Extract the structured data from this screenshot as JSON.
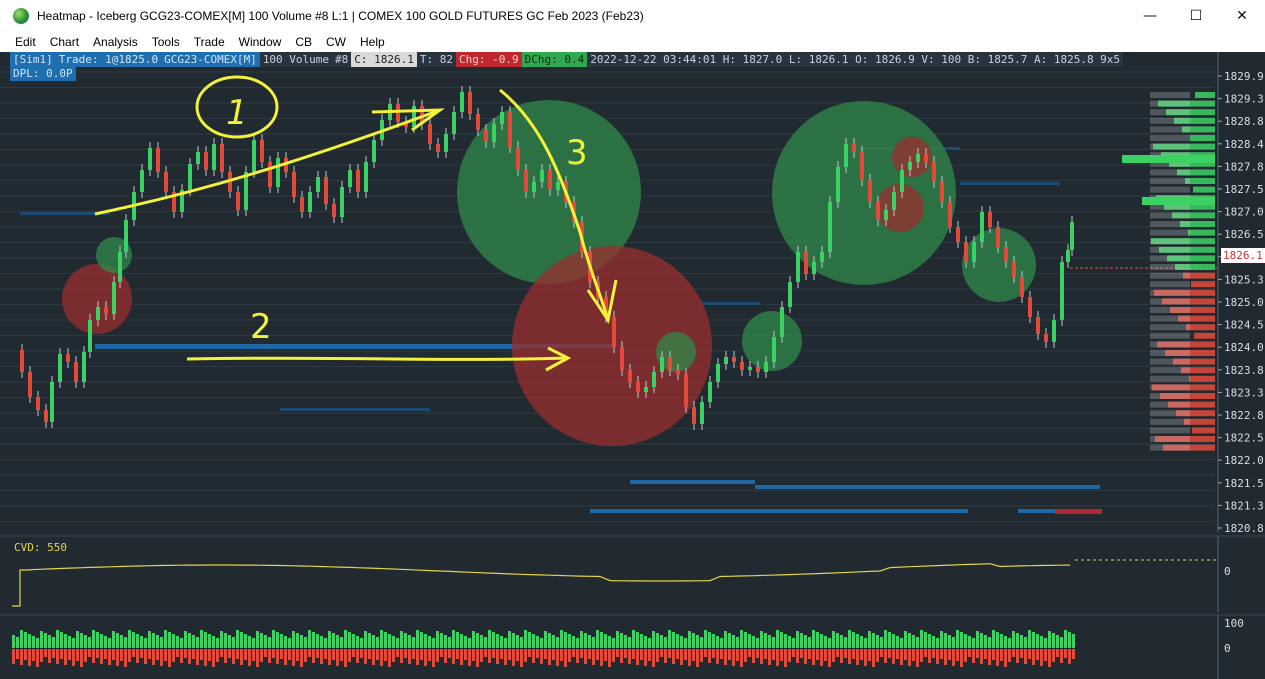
{
  "window": {
    "title": "Heatmap - Iceberg GCG23-COMEX[M]  100 Volume  #8 L:1 | COMEX 100 GOLD FUTURES GC Feb 2023 (Feb23)",
    "minimize": "—",
    "maximize": "☐",
    "close": "✕"
  },
  "menu": {
    "items": [
      "Edit",
      "Chart",
      "Analysis",
      "Tools",
      "Trade",
      "Window",
      "CB",
      "CW",
      "Help"
    ]
  },
  "info": {
    "sim": "[Sim1]",
    "trade": "Trade: 1@1825.0",
    "symbol": "GCG23-COMEX[M]",
    "volume": "100 Volume",
    "bars": "#8",
    "close": "C: 1826.1",
    "ticks": "T: 82",
    "chg": "Chg: -0.9",
    "dchg": "DChg: 0.4",
    "stats": "2022-12-22 03:44:01 H: 1827.0 L: 1826.1 O: 1826.9 V: 100 B: 1825.7 A: 1825.8 9x5",
    "dpl": "DPL: 0.0P"
  },
  "current_price_label": "1826.1",
  "cvd": {
    "label": "CVD: 550",
    "axis_zero": "0"
  },
  "volume_axis": {
    "top": "100",
    "zero": "0"
  },
  "price_axis": {
    "labels": [
      "1829.9",
      "1829.3",
      "1828.8",
      "1828.4",
      "1827.8",
      "1827.5",
      "1827.0",
      "1826.5",
      "1825.8",
      "1825.3",
      "1825.0",
      "1824.5",
      "1824.0",
      "1823.8",
      "1823.3",
      "1822.8",
      "1822.5",
      "1822.0",
      "1821.5",
      "1821.3",
      "1820.8"
    ]
  },
  "annotations": {
    "circle_note": "1",
    "note_2": "2",
    "note_3": "3"
  },
  "colors": {
    "background": "#222a31",
    "up": "#3bd163",
    "down": "#e24a3a",
    "cvd_line": "#e3d24a",
    "annotation": "#f2f23a",
    "bubble_buy": "#2f8a4a",
    "bubble_sell": "#9a2e2e",
    "liquidity": "#1f6fb0"
  }
}
